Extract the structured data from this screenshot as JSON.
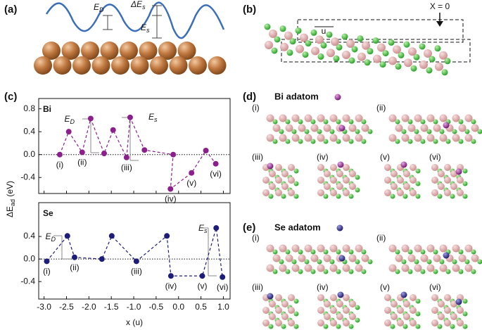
{
  "chart_data": [
    {
      "type": "line",
      "label": "Bi",
      "color": "#8b1f8b",
      "x": [
        -2.65,
        -2.45,
        -2.15,
        -1.96,
        -1.66,
        -1.46,
        -1.16,
        -1.08,
        -0.76,
        -0.12,
        -0.18,
        0.29,
        0.61,
        0.83
      ],
      "values": [
        0,
        0.4,
        0.04,
        0.63,
        0.02,
        0.43,
        -0.05,
        0.65,
        0.08,
        0.0,
        -0.6,
        -0.32,
        0.07,
        -0.16
      ],
      "point_labels": [
        "(i)",
        null,
        "(ii)",
        null,
        null,
        null,
        "(iii)",
        null,
        null,
        null,
        "(iv)",
        "(v)",
        null,
        "(vi)"
      ],
      "annotations": [
        {
          "main": "E",
          "sub": "D"
        },
        {
          "main": "E",
          "sub": "s"
        }
      ],
      "xlim": [
        -3.12,
        1.15
      ],
      "ylim": [
        -0.68,
        0.98
      ],
      "yticks": [
        0.8,
        0.4,
        {
          "value": 0,
          "label": "0.0"
        },
        -0.4
      ],
      "ylabel": {
        "main": "ΔE",
        "sub": "ad",
        "rest": " (eV)"
      }
    },
    {
      "type": "line",
      "label": "Se",
      "color": "#1c1c7a",
      "x": [
        -2.94,
        -2.48,
        -2.32,
        -1.71,
        -1.49,
        -0.94,
        -0.26,
        -0.17,
        0.53,
        0.84,
        0.98
      ],
      "values": [
        -0.04,
        0.41,
        0.03,
        0.0,
        0.41,
        -0.04,
        0.41,
        -0.3,
        -0.3,
        0.55,
        -0.32
      ],
      "point_labels": [
        "(i)",
        null,
        "(ii)",
        null,
        null,
        "(iii)",
        null,
        "(iv)",
        "(v)",
        null,
        "(vi)"
      ],
      "annotations": [
        {
          "main": "E",
          "sub": "D"
        },
        {
          "main": "E",
          "sub": "s"
        }
      ],
      "xlim": [
        -3.12,
        1.15
      ],
      "ylim": [
        -0.71,
        1.0
      ],
      "xticks": [
        {
          "value": -3,
          "label": "-3.0"
        },
        -2.5,
        {
          "value": -2,
          "label": "-2.0"
        },
        -1.5,
        {
          "value": -1,
          "label": "-1.0"
        },
        -0.5,
        {
          "value": 0,
          "label": "0.0"
        },
        0.5,
        {
          "value": 1,
          "label": "1.0"
        }
      ],
      "yticks": [
        0.4,
        {
          "value": 0,
          "label": "0.0"
        },
        -0.4
      ],
      "xlabel": "x (u)"
    }
  ],
  "figure": {
    "panel_labels": [
      "(a)",
      "(b)",
      "(c)",
      "(d)",
      "(e)"
    ],
    "panel_a": [
      {
        "main": "E",
        "sub": "D"
      },
      {
        "main": "ΔE",
        "sub": "s"
      },
      {
        "main": "E",
        "sub": "s"
      }
    ],
    "panel_b": {
      "u": "u",
      "x0": "X = 0"
    },
    "panel_d": {
      "title": "Bi adatom",
      "sites": [
        "(i)",
        "(ii)",
        "(iii)",
        "(iv)",
        "(v)",
        "(vi)"
      ]
    },
    "panel_e": {
      "title": "Se adatom",
      "sites": [
        "(i)",
        "(ii)",
        "(iii)",
        "(iv)",
        "(v)",
        "(vi)"
      ]
    }
  }
}
